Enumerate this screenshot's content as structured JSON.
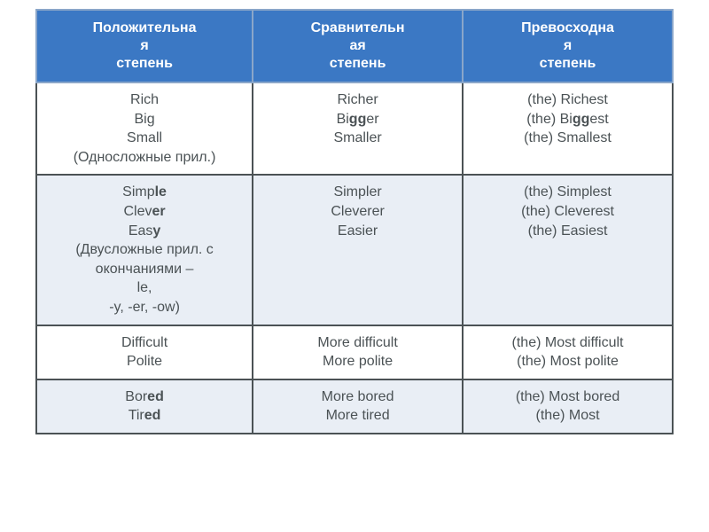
{
  "colors": {
    "header_bg": "#3b78c4",
    "header_text": "#ffffff",
    "border": "#8aa6c9",
    "row_alt": "#e9eef5",
    "row_plain": "#ffffff",
    "cell_text": "#4b5255"
  },
  "layout": {
    "col_widths_pct": [
      34,
      33,
      33
    ]
  },
  "headers": [
    {
      "line1": "Положительна",
      "line2": "я",
      "line3": "степень"
    },
    {
      "line1": "Сравнительн",
      "line2": "ая",
      "line3": "степень"
    },
    {
      "line1": "Превосходна",
      "line2": "я",
      "line3": "степень"
    }
  ],
  "rows": [
    {
      "bg": "row_plain",
      "cells": [
        [
          {
            "t": "Rich"
          },
          {
            "t": "Big"
          },
          {
            "t": "Small"
          },
          {
            "t": "(Односложные прил.)"
          }
        ],
        [
          {
            "t": "Richer"
          },
          {
            "html": "Bi<b>gg</b>er"
          },
          {
            "t": "Smaller"
          }
        ],
        [
          {
            "t": "(the) Richest"
          },
          {
            "html": "(the) Bi<b>gg</b>est"
          },
          {
            "t": "(the) Smallest"
          }
        ]
      ]
    },
    {
      "bg": "row_alt",
      "cells": [
        [
          {
            "html": "Simp<b>le</b>"
          },
          {
            "html": "Clev<b>er</b>"
          },
          {
            "html": "Eas<b>y</b>"
          },
          {
            "t": "(Двусложные прил. с окончаниями – "
          },
          {
            "t": "le,"
          },
          {
            "t": "-y, -er, -ow)"
          }
        ],
        [
          {
            "t": "Simpler"
          },
          {
            "t": "Cleverer"
          },
          {
            "t": "Easier"
          }
        ],
        [
          {
            "t": "(the)  Simplest"
          },
          {
            "t": "(the)  Cleverest"
          },
          {
            "t": "(the)  Easiest"
          }
        ]
      ]
    },
    {
      "bg": "row_plain",
      "cells": [
        [
          {
            "t": "Difficult"
          },
          {
            "t": "Polite"
          }
        ],
        [
          {
            "t": "More difficult"
          },
          {
            "t": "More polite"
          }
        ],
        [
          {
            "t": "(the)  Most difficult"
          },
          {
            "t": "(the)  Most polite"
          }
        ]
      ]
    },
    {
      "bg": "row_alt",
      "cells": [
        [
          {
            "html": "Bor<b>ed</b>"
          },
          {
            "html": "Tir<b>ed</b>"
          }
        ],
        [
          {
            "t": "More bored"
          },
          {
            "t": "More tired"
          }
        ],
        [
          {
            "t": "(the)  Most bored"
          },
          {
            "t": "(the)  Most"
          }
        ]
      ]
    }
  ]
}
